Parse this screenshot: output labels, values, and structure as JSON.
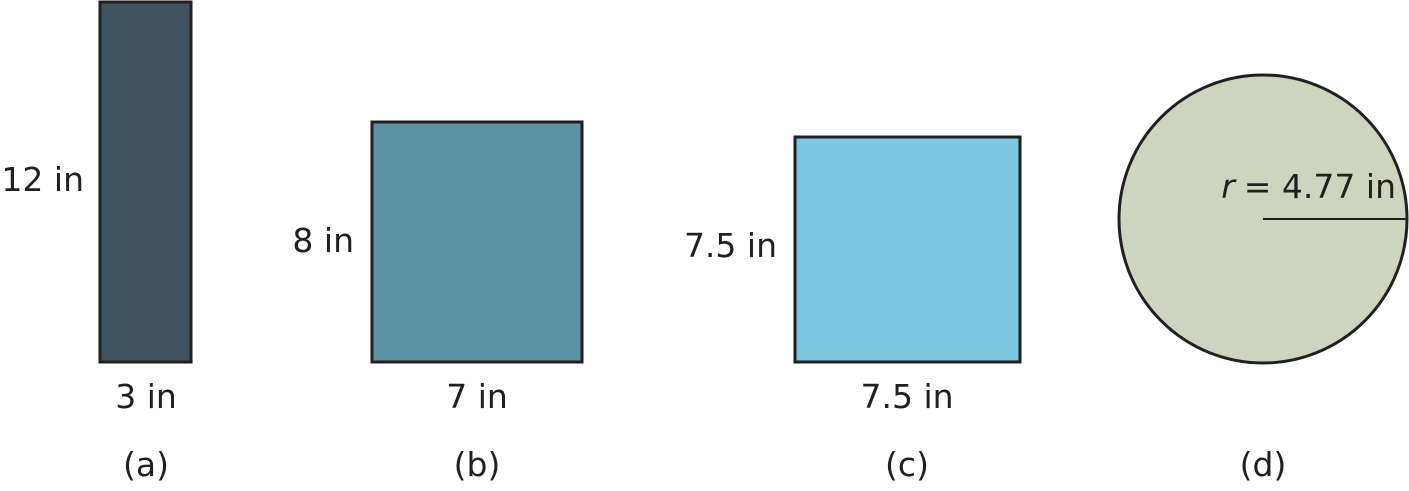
{
  "figures": [
    {
      "caption": "(a)",
      "shape": "rectangle",
      "side_label": "12 in",
      "bottom_label": "3 in",
      "fill": "#40545f"
    },
    {
      "caption": "(b)",
      "shape": "rectangle",
      "side_label": "8 in",
      "bottom_label": "7 in",
      "fill": "#5b93a5"
    },
    {
      "caption": "(c)",
      "shape": "rectangle",
      "side_label": "7.5 in",
      "bottom_label": "7.5 in",
      "fill": "#79c7e0"
    },
    {
      "caption": "(d)",
      "shape": "circle",
      "radius_var": "r",
      "radius_value": "= 4.77 in",
      "fill": "#cdd5bf"
    }
  ],
  "colors": {
    "stroke": "#231f20",
    "text": "#231f20"
  }
}
